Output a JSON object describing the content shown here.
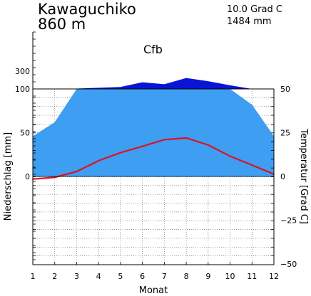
{
  "header": {
    "station": "Kawaguchiko",
    "elevation": "860 m",
    "annual_temp": "10.0 Grad C",
    "annual_precip": "1484 mm",
    "climate_class": "Cfb"
  },
  "colors": {
    "precip_fill": "#3d9ef2",
    "precip_excess_fill": "#0a14d6",
    "temp_line": "#e01020",
    "grid": "#777777"
  },
  "chart_data": {
    "type": "area",
    "xlabel": "Monat",
    "ylabel_left": "Niederschlag [mm]",
    "ylabel_right": "Temperatur [Grad C]",
    "x": [
      1,
      2,
      3,
      4,
      5,
      6,
      7,
      8,
      9,
      10,
      11,
      12
    ],
    "x_ticks": [
      "1",
      "2",
      "3",
      "4",
      "5",
      "6",
      "7",
      "8",
      "9",
      "10",
      "11",
      "12"
    ],
    "left_ticks": [
      "0",
      "50",
      "100",
      "300"
    ],
    "right_ticks": [
      "50",
      "25",
      "0",
      "−25",
      "−50"
    ],
    "precip_ylim": [
      0,
      100
    ],
    "temp_ylim": [
      -50,
      50
    ],
    "grid": true,
    "series": [
      {
        "kind": "precipitation",
        "values": [
          46,
          62,
          104,
          113,
          122,
          175,
          153,
          223,
          187,
          141,
          82,
          46
        ]
      },
      {
        "kind": "temperature",
        "values": [
          -1.5,
          -0.5,
          2.8,
          9.0,
          13.6,
          17.2,
          21.0,
          22.0,
          18.0,
          11.6,
          6.5,
          1.3
        ]
      }
    ]
  }
}
